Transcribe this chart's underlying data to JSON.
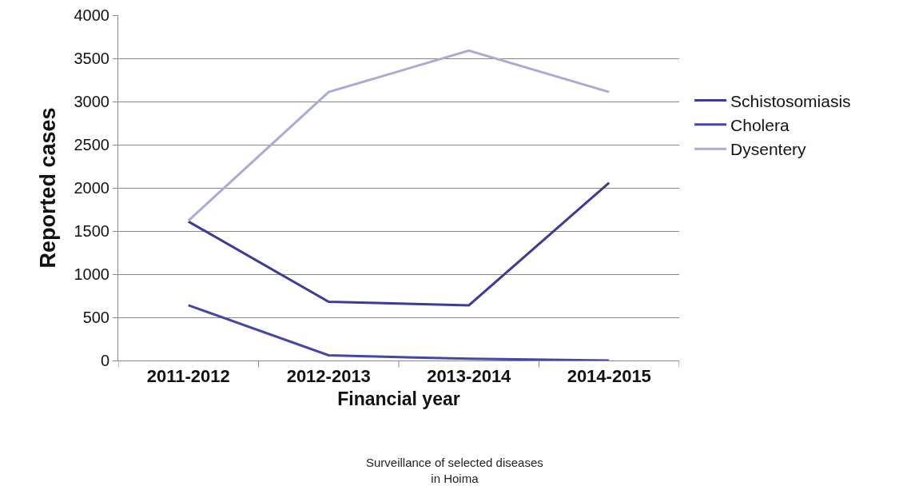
{
  "chart_data": {
    "type": "line",
    "xlabel": "Financial year",
    "ylabel": "Reported cases",
    "categories": [
      "2011-2012",
      "2012-2013",
      "2013-2014",
      "2014-2015"
    ],
    "series": [
      {
        "name": "Schistosomiasis",
        "color": "#3c3c96",
        "values": [
          1610,
          680,
          640,
          2060
        ]
      },
      {
        "name": "Cholera",
        "color": "#4646a8",
        "values": [
          640,
          60,
          20,
          0
        ]
      },
      {
        "name": "Dysentery",
        "color": "#aaaad6",
        "values": [
          1620,
          3110,
          3590,
          3110
        ]
      }
    ],
    "ylim": [
      0,
      4000
    ],
    "yticks": [
      0,
      500,
      1000,
      1500,
      2000,
      2500,
      3000,
      3500,
      4000
    ],
    "grid": "y",
    "legend": "right",
    "marker": "none",
    "line_style": "solid",
    "annotations": [
      "Surveillance of selected diseases\nin Hoima"
    ]
  }
}
